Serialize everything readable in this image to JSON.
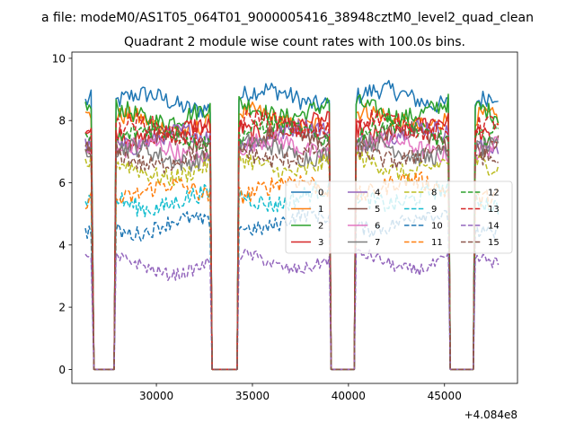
{
  "figure_title": "a file: modeM0/AS1T05_064T01_9000005416_38948cztM0_level2_quad_clean",
  "chart_data": {
    "type": "line",
    "title": "Quadrant 2 module wise count rates with 100.0s bins.",
    "xlabel": "",
    "ylabel": "",
    "x_offset_label": "+4.084e8",
    "xlim": [
      25600,
      48800
    ],
    "ylim": [
      -0.45,
      10.2
    ],
    "x_ticks": [
      30000,
      35000,
      40000,
      45000
    ],
    "x_tick_labels": [
      "30000",
      "35000",
      "40000",
      "45000"
    ],
    "y_ticks": [
      0,
      2,
      4,
      6,
      8,
      10
    ],
    "y_tick_labels": [
      "0",
      "2",
      "4",
      "6",
      "8",
      "10"
    ],
    "segments": [
      [
        26300,
        26650
      ],
      [
        27900,
        32800
      ],
      [
        34300,
        39000
      ],
      [
        40400,
        45200
      ],
      [
        46600,
        47800
      ]
    ],
    "gap_value": 0,
    "legend": {
      "position": "center-right",
      "ncol": 4
    },
    "series": [
      {
        "name": "0",
        "level": 8.6,
        "noise": 0.3,
        "style": "solid",
        "color": "#1f77b4"
      },
      {
        "name": "1",
        "level": 7.9,
        "noise": 0.3,
        "style": "solid",
        "color": "#ff7f0e"
      },
      {
        "name": "2",
        "level": 8.2,
        "noise": 0.3,
        "style": "solid",
        "color": "#2ca02c"
      },
      {
        "name": "3",
        "level": 7.6,
        "noise": 0.3,
        "style": "solid",
        "color": "#d62728"
      },
      {
        "name": "4",
        "level": 7.4,
        "noise": 0.3,
        "style": "solid",
        "color": "#9467bd"
      },
      {
        "name": "5",
        "level": 7.3,
        "noise": 0.3,
        "style": "solid",
        "color": "#8c564b"
      },
      {
        "name": "6",
        "level": 7.0,
        "noise": 0.3,
        "style": "solid",
        "color": "#e377c2"
      },
      {
        "name": "7",
        "level": 6.9,
        "noise": 0.3,
        "style": "solid",
        "color": "#7f7f7f"
      },
      {
        "name": "8",
        "level": 6.4,
        "noise": 0.3,
        "style": "dashed",
        "color": "#bcbd22"
      },
      {
        "name": "9",
        "level": 5.4,
        "noise": 0.3,
        "style": "dashed",
        "color": "#17becf"
      },
      {
        "name": "10",
        "level": 4.6,
        "noise": 0.25,
        "style": "dashed",
        "color": "#1f77b4"
      },
      {
        "name": "11",
        "level": 5.7,
        "noise": 0.3,
        "style": "dashed",
        "color": "#ff7f0e"
      },
      {
        "name": "12",
        "level": 7.5,
        "noise": 0.3,
        "style": "dashed",
        "color": "#2ca02c"
      },
      {
        "name": "13",
        "level": 7.7,
        "noise": 0.3,
        "style": "dashed",
        "color": "#d62728"
      },
      {
        "name": "14",
        "level": 3.3,
        "noise": 0.2,
        "style": "dashed",
        "color": "#9467bd"
      },
      {
        "name": "15",
        "level": 6.8,
        "noise": 0.3,
        "style": "dashed",
        "color": "#8c564b"
      }
    ]
  }
}
